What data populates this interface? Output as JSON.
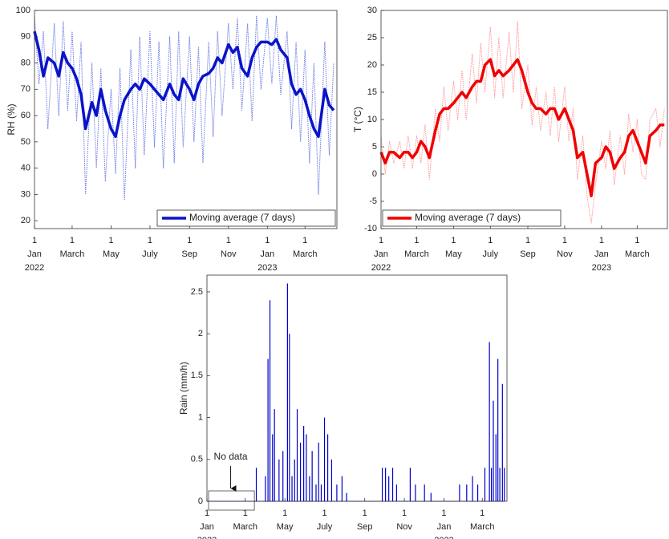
{
  "chart_data": [
    {
      "type": "line",
      "ylabel": "RH (%)",
      "x": [
        "2022-01-01",
        "2022-01-08",
        "2022-01-15",
        "2022-01-22",
        "2022-02-01",
        "2022-02-08",
        "2022-02-15",
        "2022-02-22",
        "2022-03-01",
        "2022-03-08",
        "2022-03-15",
        "2022-03-22",
        "2022-04-01",
        "2022-04-08",
        "2022-04-15",
        "2022-04-22",
        "2022-05-01",
        "2022-05-08",
        "2022-05-15",
        "2022-05-22",
        "2022-06-01",
        "2022-06-08",
        "2022-06-15",
        "2022-06-22",
        "2022-07-01",
        "2022-07-08",
        "2022-07-15",
        "2022-07-22",
        "2022-08-01",
        "2022-08-08",
        "2022-08-15",
        "2022-08-22",
        "2022-09-01",
        "2022-09-08",
        "2022-09-15",
        "2022-09-22",
        "2022-10-01",
        "2022-10-08",
        "2022-10-15",
        "2022-10-22",
        "2022-11-01",
        "2022-11-08",
        "2022-11-15",
        "2022-11-22",
        "2022-12-01",
        "2022-12-08",
        "2022-12-15",
        "2022-12-22",
        "2023-01-01",
        "2023-01-08",
        "2023-01-15",
        "2023-01-22",
        "2023-02-01",
        "2023-02-08",
        "2023-02-15",
        "2023-02-22",
        "2023-03-01",
        "2023-03-08",
        "2023-03-15",
        "2023-03-22",
        "2023-04-01",
        "2023-04-08",
        "2023-04-15"
      ],
      "series": [
        {
          "color": "#6f80e6",
          "style": "dotted",
          "values": [
            98,
            72,
            92,
            55,
            95,
            60,
            96,
            62,
            92,
            58,
            88,
            30,
            80,
            40,
            78,
            35,
            70,
            38,
            78,
            28,
            85,
            40,
            90,
            45,
            92,
            48,
            88,
            40,
            90,
            42,
            92,
            48,
            90,
            50,
            86,
            42,
            88,
            52,
            92,
            60,
            95,
            70,
            97,
            62,
            95,
            58,
            98,
            70,
            97,
            72,
            98,
            68,
            92,
            55,
            88,
            50,
            85,
            42,
            80,
            30,
            88,
            45,
            80
          ]
        },
        {
          "name": "Moving average (7 days)",
          "color": "#0a14c8",
          "style": "solid",
          "values": [
            92,
            85,
            75,
            82,
            80,
            75,
            84,
            80,
            78,
            74,
            68,
            55,
            65,
            60,
            70,
            62,
            55,
            52,
            60,
            66,
            70,
            72,
            70,
            74,
            72,
            70,
            68,
            66,
            72,
            68,
            66,
            74,
            70,
            66,
            72,
            75,
            76,
            78,
            82,
            80,
            87,
            84,
            86,
            78,
            75,
            82,
            86,
            88,
            88,
            87,
            89,
            85,
            82,
            72,
            68,
            70,
            66,
            60,
            55,
            52,
            70,
            64,
            62
          ]
        }
      ],
      "xlim": [
        "2022-01-01",
        "2023-04-20"
      ],
      "xticks": [
        {
          "value": "2022-01-01",
          "label": [
            "1",
            "Jan",
            "2022"
          ]
        },
        {
          "value": "2022-03-01",
          "label": [
            "1",
            "March"
          ]
        },
        {
          "value": "2022-05-01",
          "label": [
            "1",
            "May"
          ]
        },
        {
          "value": "2022-07-01",
          "label": [
            "1",
            "July"
          ]
        },
        {
          "value": "2022-09-01",
          "label": [
            "1",
            "Sep"
          ]
        },
        {
          "value": "2022-11-01",
          "label": [
            "1",
            "Nov"
          ]
        },
        {
          "value": "2023-01-01",
          "label": [
            "1",
            "Jan",
            "2023"
          ]
        },
        {
          "value": "2023-03-01",
          "label": [
            "1",
            "March"
          ]
        }
      ],
      "ylim": [
        17,
        100
      ],
      "yticks": [
        20,
        30,
        40,
        50,
        60,
        70,
        80,
        90,
        100
      ],
      "legend": "lower right"
    },
    {
      "type": "line",
      "ylabel": "T (°C)",
      "x": [
        "2022-01-01",
        "2022-01-08",
        "2022-01-15",
        "2022-01-22",
        "2022-02-01",
        "2022-02-08",
        "2022-02-15",
        "2022-02-22",
        "2022-03-01",
        "2022-03-08",
        "2022-03-15",
        "2022-03-22",
        "2022-04-01",
        "2022-04-08",
        "2022-04-15",
        "2022-04-22",
        "2022-05-01",
        "2022-05-08",
        "2022-05-15",
        "2022-05-22",
        "2022-06-01",
        "2022-06-08",
        "2022-06-15",
        "2022-06-22",
        "2022-07-01",
        "2022-07-08",
        "2022-07-15",
        "2022-07-22",
        "2022-08-01",
        "2022-08-08",
        "2022-08-15",
        "2022-08-22",
        "2022-09-01",
        "2022-09-08",
        "2022-09-15",
        "2022-09-22",
        "2022-10-01",
        "2022-10-08",
        "2022-10-15",
        "2022-10-22",
        "2022-11-01",
        "2022-11-08",
        "2022-11-15",
        "2022-11-22",
        "2022-12-01",
        "2022-12-08",
        "2022-12-15",
        "2022-12-22",
        "2023-01-01",
        "2023-01-08",
        "2023-01-15",
        "2023-01-22",
        "2023-02-01",
        "2023-02-08",
        "2023-02-15",
        "2023-02-22",
        "2023-03-01",
        "2023-03-08",
        "2023-03-15",
        "2023-03-22",
        "2023-04-01",
        "2023-04-08",
        "2023-04-15"
      ],
      "series": [
        {
          "color": "#ff9c9c",
          "style": "dotted",
          "values": [
            7,
            0,
            6,
            2,
            6,
            1,
            7,
            1,
            7,
            2,
            9,
            -1,
            12,
            6,
            16,
            8,
            17,
            10,
            19,
            10,
            22,
            13,
            24,
            15,
            27,
            14,
            25,
            14,
            26,
            15,
            28,
            12,
            20,
            9,
            16,
            8,
            15,
            7,
            16,
            6,
            16,
            6,
            12,
            -1,
            7,
            -4,
            -9,
            -2,
            6,
            1,
            8,
            -2,
            7,
            0,
            11,
            4,
            10,
            0,
            -1,
            10,
            12,
            5,
            12
          ]
        },
        {
          "name": "Moving average (7 days)",
          "color": "#f00000",
          "style": "solid",
          "values": [
            4,
            2,
            4,
            4,
            3,
            4,
            4,
            3,
            4,
            6,
            5,
            3,
            8,
            11,
            12,
            12,
            13,
            14,
            15,
            14,
            16,
            17,
            17,
            20,
            21,
            18,
            19,
            18,
            19,
            20,
            21,
            19,
            15,
            13,
            12,
            12,
            11,
            12,
            12,
            10,
            12,
            10,
            8,
            3,
            4,
            0,
            -4,
            2,
            3,
            5,
            4,
            1,
            3,
            4,
            7,
            8,
            6,
            4,
            2,
            7,
            8,
            9,
            9
          ]
        }
      ],
      "xlim": [
        "2022-01-01",
        "2023-04-20"
      ],
      "xticks": [
        {
          "value": "2022-01-01",
          "label": [
            "1",
            "Jan",
            "2022"
          ]
        },
        {
          "value": "2022-03-01",
          "label": [
            "1",
            "March"
          ]
        },
        {
          "value": "2022-05-01",
          "label": [
            "1",
            "May"
          ]
        },
        {
          "value": "2022-07-01",
          "label": [
            "1",
            "July"
          ]
        },
        {
          "value": "2022-09-01",
          "label": [
            "1",
            "Sep"
          ]
        },
        {
          "value": "2022-11-01",
          "label": [
            "1",
            "Nov"
          ]
        },
        {
          "value": "2023-01-01",
          "label": [
            "1",
            "Jan",
            "2023"
          ]
        },
        {
          "value": "2023-03-01",
          "label": [
            "1",
            "March"
          ]
        }
      ],
      "ylim": [
        -10,
        30
      ],
      "yticks": [
        -10,
        -5,
        0,
        5,
        10,
        15,
        20,
        25,
        30
      ],
      "legend": "lower left"
    },
    {
      "type": "stem",
      "ylabel": "Rain (mm/h)",
      "color": "#0000cc",
      "x": [
        "2022-03-18",
        "2022-04-01",
        "2022-04-05",
        "2022-04-08",
        "2022-04-12",
        "2022-04-15",
        "2022-04-22",
        "2022-04-28",
        "2022-05-05",
        "2022-05-08",
        "2022-05-12",
        "2022-05-16",
        "2022-05-20",
        "2022-05-25",
        "2022-05-30",
        "2022-06-03",
        "2022-06-08",
        "2022-06-12",
        "2022-06-18",
        "2022-06-22",
        "2022-06-26",
        "2022-07-01",
        "2022-07-06",
        "2022-07-12",
        "2022-07-20",
        "2022-07-28",
        "2022-08-04",
        "2022-09-28",
        "2022-10-03",
        "2022-10-08",
        "2022-10-14",
        "2022-10-20",
        "2022-11-10",
        "2022-11-18",
        "2022-12-02",
        "2022-12-12",
        "2023-01-25",
        "2023-02-05",
        "2023-02-14",
        "2023-02-22",
        "2023-03-05",
        "2023-03-12",
        "2023-03-15",
        "2023-03-18",
        "2023-03-22",
        "2023-03-25",
        "2023-03-28",
        "2023-04-01",
        "2023-04-04"
      ],
      "values": [
        0.4,
        0.3,
        1.7,
        2.4,
        0.8,
        1.1,
        0.5,
        0.6,
        2.6,
        2.0,
        0.3,
        0.5,
        1.1,
        0.7,
        0.9,
        0.8,
        0.3,
        0.6,
        0.2,
        0.7,
        0.2,
        1.0,
        0.8,
        0.5,
        0.2,
        0.3,
        0.1,
        0.4,
        0.4,
        0.3,
        0.4,
        0.2,
        0.4,
        0.2,
        0.2,
        0.1,
        0.2,
        0.2,
        0.3,
        0.2,
        0.4,
        1.9,
        0.4,
        1.2,
        0.8,
        1.7,
        0.4,
        1.4,
        0.4
      ],
      "xlim": [
        "2022-01-01",
        "2023-04-08"
      ],
      "xticks": [
        {
          "value": "2022-01-01",
          "label": [
            "1",
            "Jan",
            "2022"
          ]
        },
        {
          "value": "2022-03-01",
          "label": [
            "1",
            "March"
          ]
        },
        {
          "value": "2022-05-01",
          "label": [
            "1",
            "May"
          ]
        },
        {
          "value": "2022-07-01",
          "label": [
            "1",
            "July"
          ]
        },
        {
          "value": "2022-09-01",
          "label": [
            "1",
            "Sep"
          ]
        },
        {
          "value": "2022-11-01",
          "label": [
            "1",
            "Nov"
          ]
        },
        {
          "value": "2023-01-01",
          "label": [
            "1",
            "Jan",
            "2023"
          ]
        },
        {
          "value": "2023-03-01",
          "label": [
            "1",
            "March"
          ]
        }
      ],
      "ylim": [
        0,
        2.7
      ],
      "yticks": [
        0,
        0.5,
        1,
        1.5,
        2,
        2.5
      ],
      "annotation": {
        "text": "No data",
        "range": [
          "2022-01-01",
          "2022-03-15"
        ]
      }
    }
  ]
}
